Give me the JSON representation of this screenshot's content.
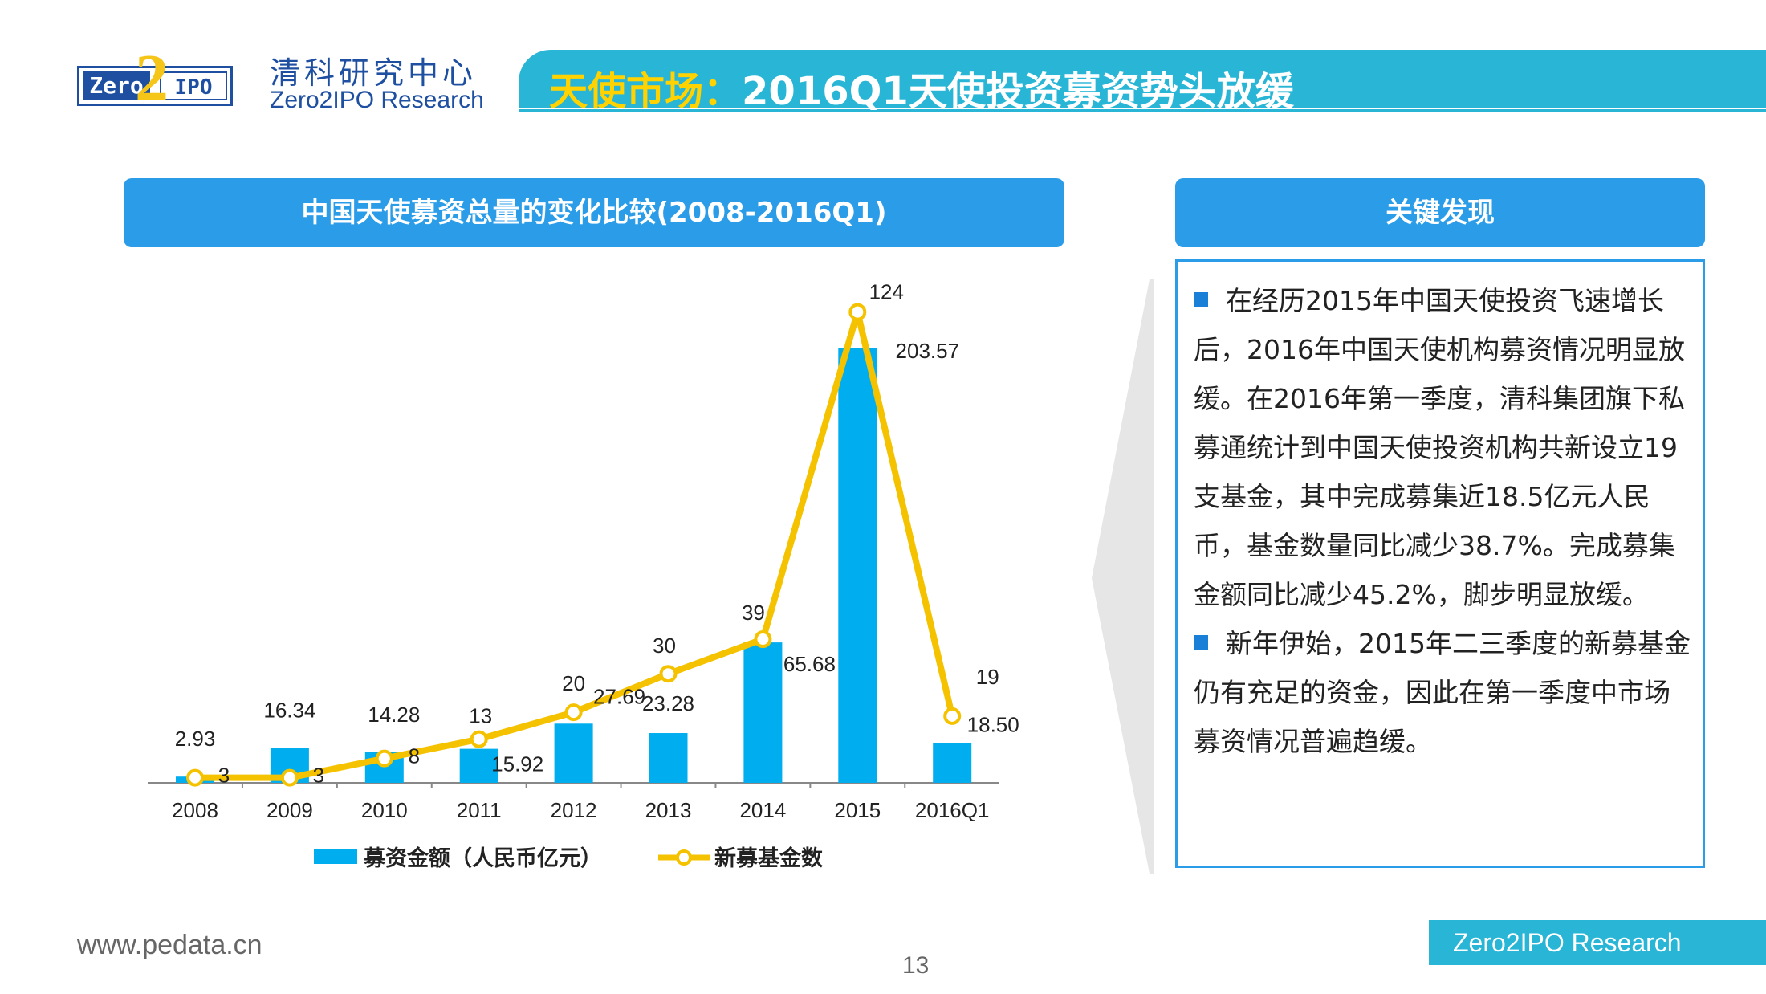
{
  "header": {
    "logo_left": "Zero",
    "logo_two": "2",
    "logo_right": "IPO",
    "brand_cn": "清科研究中心",
    "brand_en": "Zero2IPO Research",
    "title_accent": "天使市场：",
    "title_main": "2016Q1天使投资募资势头放缓"
  },
  "colors": {
    "bar": "#00aeef",
    "line": "#f5c200",
    "header_blue": "#2b9de8",
    "title_teal": "#29b6d6"
  },
  "chart_panel": {
    "header": "中国天使募资总量的变化比较(2008-2016Q1)"
  },
  "chart_data": {
    "type": "bar",
    "title": "中国天使募资总量的变化比较(2008-2016Q1)",
    "categories": [
      "2008",
      "2009",
      "2010",
      "2011",
      "2012",
      "2013",
      "2014",
      "2015",
      "2016Q1"
    ],
    "series": [
      {
        "name": "募资金额（人民币亿元）",
        "type": "bar",
        "values": [
          2.93,
          16.34,
          14.28,
          15.92,
          27.69,
          23.28,
          65.68,
          203.57,
          18.5
        ],
        "labels": [
          "2.93",
          "16.34",
          "14.28",
          "15.92",
          "27.69",
          "23.28",
          "65.68",
          "203.57",
          "18.50"
        ]
      },
      {
        "name": "新募基金数",
        "type": "line",
        "values": [
          3,
          3,
          8,
          13,
          20,
          30,
          39,
          124,
          19
        ],
        "labels": [
          "3",
          "3",
          "8",
          "13",
          "20",
          "30",
          "39",
          "124",
          "19"
        ]
      }
    ],
    "bar_ylim": [
      0,
      270
    ],
    "line_ylim": [
      0,
      136
    ],
    "grid": false,
    "legend_position": "bottom"
  },
  "findings": {
    "header": "关键发现",
    "p1": "在经历2015年中国天使投资飞速增长后，2016年中国天使机构募资情况明显放缓。在2016年第一季度，清科集团旗下私募通统计到中国天使投资机构共新设立19支基金，其中完成募集近18.5亿元人民币，基金数量同比减少38.7%。完成募集金额同比减少45.2%，脚步明显放缓。",
    "p2": "新年伊始，2015年二三季度的新募基金仍有充足的资金，因此在第一季度中市场募资情况普遍趋缓。"
  },
  "footer": {
    "url": "www.pedata.cn",
    "page": "13",
    "brand": "Zero2IPO Research"
  }
}
